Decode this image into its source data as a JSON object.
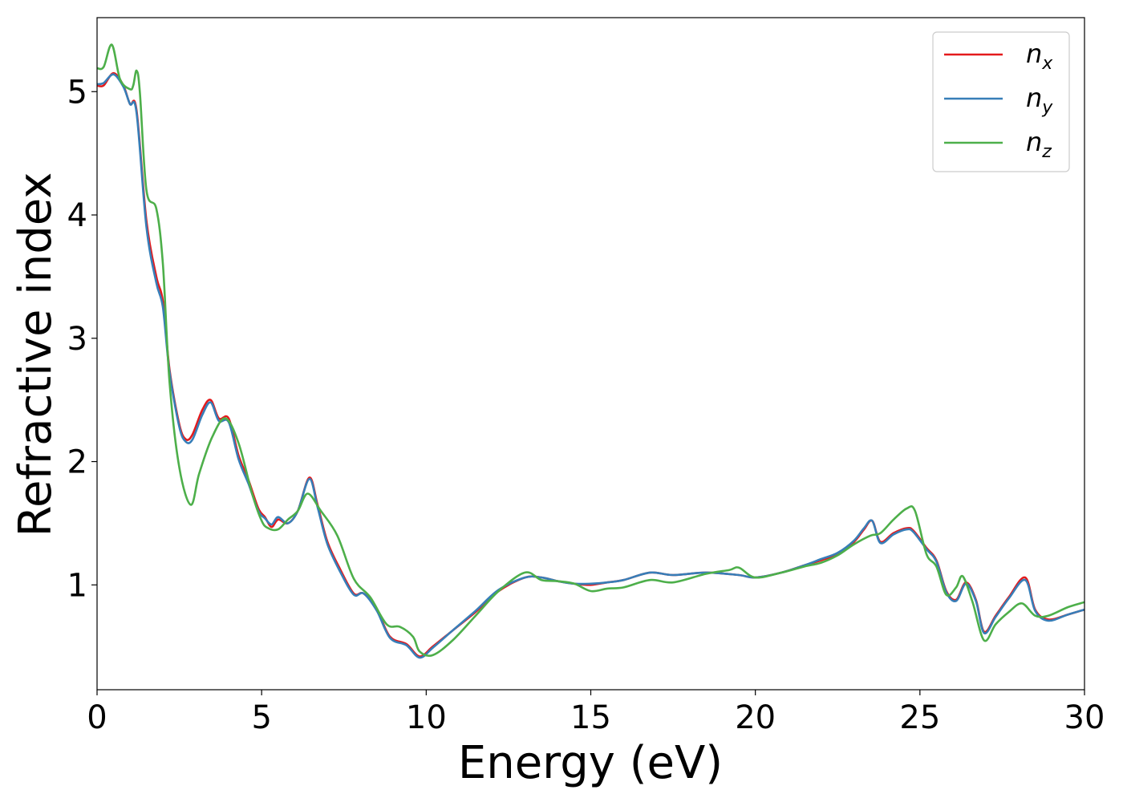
{
  "chart_data": {
    "type": "line",
    "xlabel": "Energy (eV)",
    "ylabel": "Refractive index",
    "xlim": [
      0,
      30
    ],
    "ylim": [
      0.15,
      5.6
    ],
    "xticks": [
      0,
      5,
      10,
      15,
      20,
      25,
      30
    ],
    "yticks": [
      1,
      2,
      3,
      4,
      5
    ],
    "grid": false,
    "legend_position": "top-right",
    "series": [
      {
        "name": "n_x",
        "label_base": "n",
        "label_sub": "x",
        "color": "#e41a1c",
        "x": [
          0,
          0.2,
          0.5,
          0.8,
          1.0,
          1.2,
          1.5,
          1.8,
          2.0,
          2.2,
          2.5,
          2.7,
          2.9,
          3.2,
          3.45,
          3.7,
          4.0,
          4.3,
          4.6,
          4.9,
          5.1,
          5.3,
          5.5,
          5.8,
          6.1,
          6.45,
          6.7,
          7.0,
          7.4,
          7.8,
          8.1,
          8.5,
          8.9,
          9.4,
          9.8,
          10.2,
          10.8,
          11.5,
          12.2,
          13.0,
          13.5,
          14.0,
          14.5,
          15.0,
          15.5,
          16.0,
          16.8,
          17.5,
          18.5,
          19.5,
          20.0,
          20.8,
          21.5,
          22.0,
          22.5,
          23.0,
          23.3,
          23.55,
          23.8,
          24.2,
          24.6,
          24.8,
          25.2,
          25.5,
          25.8,
          26.1,
          26.4,
          26.7,
          26.95,
          27.3,
          27.7,
          28.2,
          28.5,
          28.9,
          29.5,
          30.0
        ],
        "values": [
          5.05,
          5.05,
          5.15,
          5.05,
          4.9,
          4.85,
          3.95,
          3.5,
          3.3,
          2.75,
          2.3,
          2.18,
          2.22,
          2.42,
          2.5,
          2.35,
          2.35,
          2.05,
          1.85,
          1.62,
          1.55,
          1.47,
          1.53,
          1.5,
          1.6,
          1.87,
          1.65,
          1.35,
          1.12,
          0.93,
          0.93,
          0.8,
          0.58,
          0.52,
          0.42,
          0.5,
          0.63,
          0.78,
          0.95,
          1.06,
          1.06,
          1.03,
          1.01,
          1.0,
          1.02,
          1.04,
          1.1,
          1.08,
          1.1,
          1.08,
          1.06,
          1.1,
          1.16,
          1.2,
          1.25,
          1.35,
          1.45,
          1.52,
          1.35,
          1.42,
          1.46,
          1.44,
          1.3,
          1.2,
          0.95,
          0.88,
          1.02,
          0.88,
          0.62,
          0.75,
          0.9,
          1.06,
          0.8,
          0.72,
          0.76,
          0.8
        ]
      },
      {
        "name": "n_y",
        "label_base": "n",
        "label_sub": "y",
        "color": "#377eb8",
        "x": [
          0,
          0.2,
          0.5,
          0.8,
          1.0,
          1.2,
          1.5,
          1.8,
          2.0,
          2.2,
          2.5,
          2.7,
          2.9,
          3.2,
          3.45,
          3.7,
          4.0,
          4.3,
          4.6,
          4.9,
          5.1,
          5.3,
          5.5,
          5.8,
          6.1,
          6.45,
          6.7,
          7.0,
          7.4,
          7.8,
          8.1,
          8.5,
          8.9,
          9.4,
          9.8,
          10.2,
          10.8,
          11.5,
          12.2,
          13.0,
          13.5,
          14.0,
          14.5,
          15.0,
          15.5,
          16.0,
          16.8,
          17.5,
          18.5,
          19.5,
          20.0,
          20.8,
          21.5,
          22.0,
          22.5,
          23.0,
          23.3,
          23.55,
          23.8,
          24.2,
          24.6,
          24.8,
          25.2,
          25.5,
          25.8,
          26.1,
          26.4,
          26.7,
          26.95,
          27.3,
          27.7,
          28.2,
          28.5,
          28.9,
          29.5,
          30.0
        ],
        "values": [
          5.06,
          5.07,
          5.14,
          5.04,
          4.9,
          4.83,
          3.9,
          3.45,
          3.25,
          2.73,
          2.28,
          2.16,
          2.18,
          2.38,
          2.48,
          2.33,
          2.32,
          2.02,
          1.82,
          1.6,
          1.54,
          1.49,
          1.55,
          1.5,
          1.6,
          1.86,
          1.63,
          1.33,
          1.1,
          0.92,
          0.93,
          0.79,
          0.57,
          0.51,
          0.41,
          0.49,
          0.63,
          0.79,
          0.96,
          1.06,
          1.06,
          1.03,
          1.01,
          1.01,
          1.02,
          1.04,
          1.1,
          1.08,
          1.1,
          1.08,
          1.06,
          1.1,
          1.16,
          1.21,
          1.26,
          1.36,
          1.46,
          1.52,
          1.34,
          1.41,
          1.45,
          1.43,
          1.29,
          1.19,
          0.94,
          0.87,
          1.01,
          0.87,
          0.61,
          0.74,
          0.89,
          1.04,
          0.79,
          0.71,
          0.76,
          0.8
        ]
      },
      {
        "name": "n_z",
        "label_base": "n",
        "label_sub": "z",
        "color": "#4daf4a",
        "x": [
          0,
          0.2,
          0.45,
          0.7,
          1.0,
          1.1,
          1.2,
          1.3,
          1.5,
          1.8,
          2.0,
          2.2,
          2.5,
          2.85,
          3.1,
          3.5,
          3.9,
          4.3,
          4.7,
          5.0,
          5.2,
          5.5,
          5.8,
          6.1,
          6.4,
          6.8,
          7.3,
          7.8,
          8.3,
          8.8,
          9.2,
          9.6,
          9.8,
          10.2,
          10.8,
          11.5,
          12.2,
          13.0,
          13.5,
          14.0,
          14.5,
          15.0,
          15.5,
          16.0,
          16.8,
          17.5,
          18.5,
          19.2,
          19.5,
          20.0,
          20.8,
          21.5,
          22.0,
          22.5,
          23.0,
          23.5,
          23.8,
          24.2,
          24.6,
          24.85,
          25.2,
          25.5,
          25.8,
          26.1,
          26.3,
          26.6,
          26.95,
          27.3,
          27.7,
          28.1,
          28.5,
          28.9,
          29.5,
          30.0
        ],
        "values": [
          5.19,
          5.2,
          5.38,
          5.1,
          5.02,
          5.05,
          5.17,
          5.0,
          4.2,
          4.05,
          3.6,
          2.65,
          1.95,
          1.65,
          1.9,
          2.2,
          2.35,
          2.15,
          1.75,
          1.52,
          1.46,
          1.45,
          1.53,
          1.6,
          1.74,
          1.6,
          1.4,
          1.05,
          0.9,
          0.68,
          0.66,
          0.58,
          0.46,
          0.43,
          0.55,
          0.75,
          0.95,
          1.1,
          1.04,
          1.03,
          1.01,
          0.95,
          0.97,
          0.98,
          1.04,
          1.02,
          1.09,
          1.12,
          1.14,
          1.06,
          1.1,
          1.15,
          1.18,
          1.24,
          1.33,
          1.4,
          1.42,
          1.53,
          1.62,
          1.6,
          1.25,
          1.15,
          0.92,
          0.98,
          1.07,
          0.86,
          0.55,
          0.68,
          0.78,
          0.85,
          0.75,
          0.75,
          0.82,
          0.86
        ]
      }
    ]
  }
}
